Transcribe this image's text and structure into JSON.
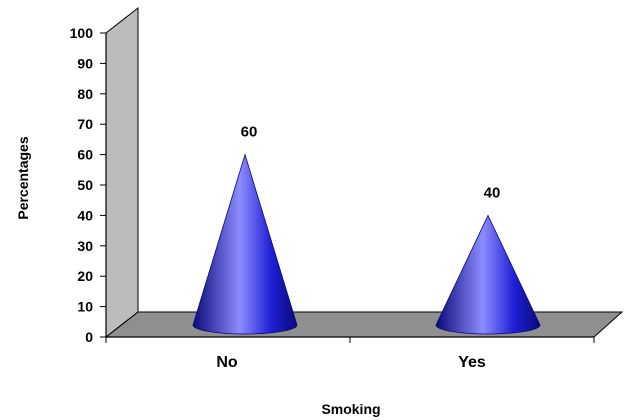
{
  "chart_data": {
    "type": "bar",
    "bar_shape": "3d-cone",
    "categories": [
      "No",
      "Yes"
    ],
    "values": [
      60,
      40
    ],
    "data_labels": [
      "60",
      "40"
    ],
    "title": "",
    "xlabel": "Smoking",
    "ylabel": "Percentages",
    "ylim": [
      0,
      100
    ],
    "yticks": [
      0,
      10,
      20,
      30,
      40,
      50,
      60,
      70,
      80,
      90,
      100
    ],
    "grid": false,
    "legend": false,
    "colors": {
      "cone": "#1f1fd6",
      "cone_highlight": "#8c8cff",
      "cone_shadow": "#0a0a7a",
      "wall": "#bcbcbc",
      "floor": "#8f8f8f"
    }
  }
}
